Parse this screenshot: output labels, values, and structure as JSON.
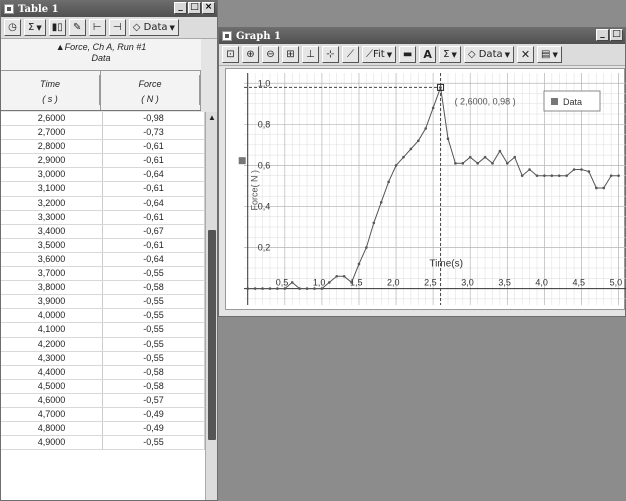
{
  "table_window": {
    "title": "Table 1",
    "toolbar": {
      "sigma": "Σ",
      "data_label": "Data"
    },
    "column_group_title": "▲Force, Ch A, Run #1",
    "column_group_subtitle": "Data",
    "columns": [
      {
        "name": "Time",
        "unit": "( s )"
      },
      {
        "name": "Force",
        "unit": "( N )"
      }
    ],
    "rows": [
      [
        "2,6000",
        "-0,98"
      ],
      [
        "2,7000",
        "-0,73"
      ],
      [
        "2,8000",
        "-0,61"
      ],
      [
        "2,9000",
        "-0,61"
      ],
      [
        "3,0000",
        "-0,64"
      ],
      [
        "3,1000",
        "-0,61"
      ],
      [
        "3,2000",
        "-0,64"
      ],
      [
        "3,3000",
        "-0,61"
      ],
      [
        "3,4000",
        "-0,67"
      ],
      [
        "3,5000",
        "-0,61"
      ],
      [
        "3,6000",
        "-0,64"
      ],
      [
        "3,7000",
        "-0,55"
      ],
      [
        "3,8000",
        "-0,58"
      ],
      [
        "3,9000",
        "-0,55"
      ],
      [
        "4,0000",
        "-0,55"
      ],
      [
        "4,1000",
        "-0,55"
      ],
      [
        "4,2000",
        "-0,55"
      ],
      [
        "4,3000",
        "-0,55"
      ],
      [
        "4,4000",
        "-0,58"
      ],
      [
        "4,5000",
        "-0,58"
      ],
      [
        "4,6000",
        "-0,57"
      ],
      [
        "4,7000",
        "-0,49"
      ],
      [
        "4,8000",
        "-0,49"
      ],
      [
        "4,9000",
        "-0,55"
      ]
    ]
  },
  "graph_window": {
    "title": "Graph 1",
    "toolbar": {
      "fit_label": "Fit",
      "sigma": "Σ",
      "data_label": "Data"
    },
    "legend_label": "Data",
    "cursor_readout": "( 2,6000, 0,98 )"
  },
  "chart_data": {
    "type": "line",
    "xlabel": "Time(s)",
    "ylabel": "Force( N )",
    "x_ticks": [
      "0,5",
      "1,0",
      "1,5",
      "2,0",
      "2,5",
      "3,0",
      "3,5",
      "4,0",
      "4,5",
      "5,0"
    ],
    "y_ticks": [
      "0,2",
      "0,4",
      "0,6",
      "0,8",
      "1,0"
    ],
    "xlim": [
      -0.05,
      5.1
    ],
    "ylim": [
      -0.08,
      1.05
    ],
    "grid": true,
    "legend_position": "top-right",
    "series": [
      {
        "name": "Data",
        "x": [
          0.0,
          0.1,
          0.2,
          0.3,
          0.4,
          0.5,
          0.6,
          0.7,
          0.8,
          0.9,
          1.0,
          1.1,
          1.2,
          1.3,
          1.4,
          1.5,
          1.6,
          1.7,
          1.8,
          1.9,
          2.0,
          2.1,
          2.2,
          2.3,
          2.4,
          2.5,
          2.6,
          2.7,
          2.8,
          2.9,
          3.0,
          3.1,
          3.2,
          3.3,
          3.4,
          3.5,
          3.6,
          3.7,
          3.8,
          3.9,
          4.0,
          4.1,
          4.2,
          4.3,
          4.4,
          4.5,
          4.6,
          4.7,
          4.8,
          4.9,
          5.0
        ],
        "y": [
          0.0,
          0.0,
          0.0,
          0.0,
          0.0,
          0.0,
          0.03,
          0.0,
          0.0,
          0.0,
          0.0,
          0.03,
          0.06,
          0.06,
          0.03,
          0.12,
          0.2,
          0.32,
          0.42,
          0.52,
          0.6,
          0.64,
          0.68,
          0.72,
          0.78,
          0.88,
          0.98,
          0.73,
          0.61,
          0.61,
          0.64,
          0.61,
          0.64,
          0.61,
          0.67,
          0.61,
          0.64,
          0.55,
          0.58,
          0.55,
          0.55,
          0.55,
          0.55,
          0.55,
          0.58,
          0.58,
          0.57,
          0.49,
          0.49,
          0.55,
          0.55
        ]
      }
    ],
    "cursor": {
      "x": 2.6,
      "y": 0.98
    }
  },
  "colors": {
    "series": "#555555",
    "grid": "#dcdcdc",
    "titlebar": "#5a5a5a"
  }
}
